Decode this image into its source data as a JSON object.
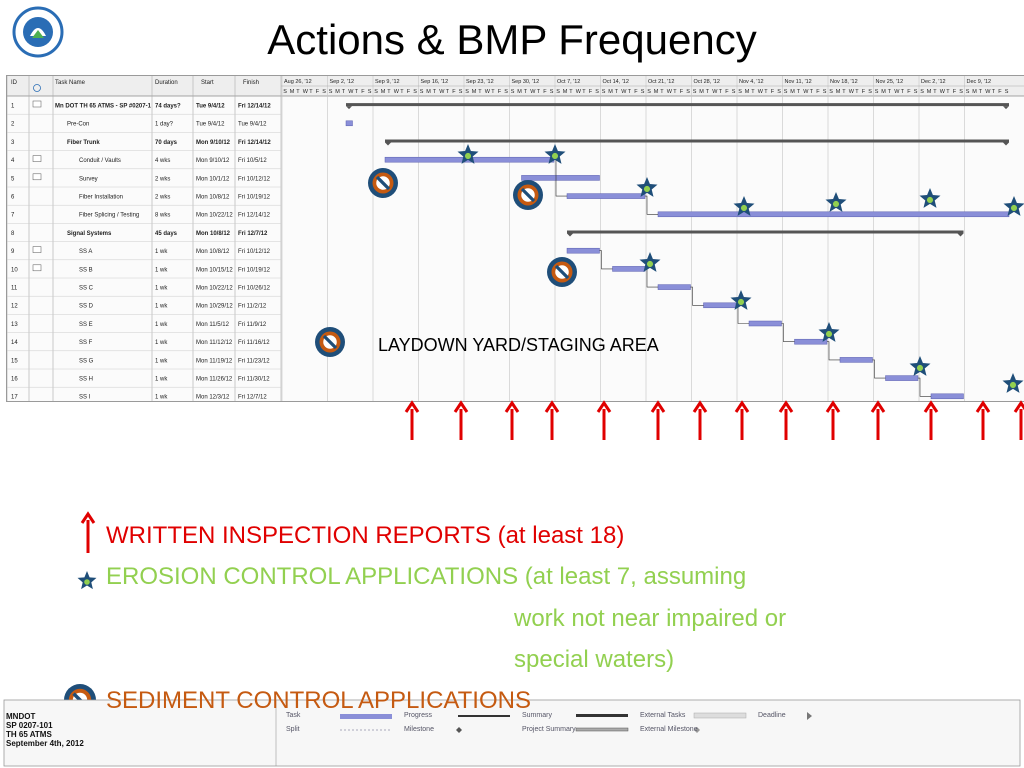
{
  "title": "Actions & BMP Frequency",
  "gantt": {
    "headers": {
      "id": "ID",
      "task_name": "Task Name",
      "duration": "Duration",
      "start": "Start",
      "finish": "Finish"
    },
    "week_labels": [
      "Aug 26, '12",
      "Sep 2, '12",
      "Sep 9, '12",
      "Sep 16, '12",
      "Sep 23, '12",
      "Sep 30, '12",
      "Oct 7, '12",
      "Oct 14, '12",
      "Oct 21, '12",
      "Oct 28, '12",
      "Nov 4, '12",
      "Nov 11, '12",
      "Nov 18, '12",
      "Nov 25, '12",
      "Dec 2, '12",
      "Dec 9, '12"
    ],
    "day_letters": [
      "S",
      "M",
      "T",
      "W",
      "T",
      "F",
      "S"
    ],
    "tasks": [
      {
        "id": "1",
        "name": "Mn DOT TH 65 ATMS - SP #0207-1",
        "duration": "74 days?",
        "start": "Tue 9/4/12",
        "finish": "Fri 12/14/12",
        "bold": true,
        "indent": 0
      },
      {
        "id": "2",
        "name": "Pre-Con",
        "duration": "1 day?",
        "start": "Tue 9/4/12",
        "finish": "Tue 9/4/12",
        "bold": false,
        "indent": 1
      },
      {
        "id": "3",
        "name": "Fiber Trunk",
        "duration": "70 days",
        "start": "Mon 9/10/12",
        "finish": "Fri 12/14/12",
        "bold": true,
        "indent": 1
      },
      {
        "id": "4",
        "name": "Conduit / Vaults",
        "duration": "4 wks",
        "start": "Mon 9/10/12",
        "finish": "Fri 10/5/12",
        "bold": false,
        "indent": 2
      },
      {
        "id": "5",
        "name": "Survey",
        "duration": "2 wks",
        "start": "Mon 10/1/12",
        "finish": "Fri 10/12/12",
        "bold": false,
        "indent": 2
      },
      {
        "id": "6",
        "name": "Fiber Installation",
        "duration": "2 wks",
        "start": "Mon 10/8/12",
        "finish": "Fri 10/19/12",
        "bold": false,
        "indent": 2
      },
      {
        "id": "7",
        "name": "Fiber Splicing / Testing",
        "duration": "8 wks",
        "start": "Mon 10/22/12",
        "finish": "Fri 12/14/12",
        "bold": false,
        "indent": 2
      },
      {
        "id": "8",
        "name": "Signal Systems",
        "duration": "45 days",
        "start": "Mon 10/8/12",
        "finish": "Fri 12/7/12",
        "bold": true,
        "indent": 1
      },
      {
        "id": "9",
        "name": "SS A",
        "duration": "1 wk",
        "start": "Mon 10/8/12",
        "finish": "Fri 10/12/12",
        "bold": false,
        "indent": 2
      },
      {
        "id": "10",
        "name": "SS B",
        "duration": "1 wk",
        "start": "Mon 10/15/12",
        "finish": "Fri 10/19/12",
        "bold": false,
        "indent": 2
      },
      {
        "id": "11",
        "name": "SS C",
        "duration": "1 wk",
        "start": "Mon 10/22/12",
        "finish": "Fri 10/26/12",
        "bold": false,
        "indent": 2
      },
      {
        "id": "12",
        "name": "SS D",
        "duration": "1 wk",
        "start": "Mon 10/29/12",
        "finish": "Fri 11/2/12",
        "bold": false,
        "indent": 2
      },
      {
        "id": "13",
        "name": "SS E",
        "duration": "1 wk",
        "start": "Mon 11/5/12",
        "finish": "Fri 11/9/12",
        "bold": false,
        "indent": 2
      },
      {
        "id": "14",
        "name": "SS F",
        "duration": "1 wk",
        "start": "Mon 11/12/12",
        "finish": "Fri 11/16/12",
        "bold": false,
        "indent": 2
      },
      {
        "id": "15",
        "name": "SS G",
        "duration": "1 wk",
        "start": "Mon 11/19/12",
        "finish": "Fri 11/23/12",
        "bold": false,
        "indent": 2
      },
      {
        "id": "16",
        "name": "SS H",
        "duration": "1 wk",
        "start": "Mon 11/26/12",
        "finish": "Fri 11/30/12",
        "bold": false,
        "indent": 2
      },
      {
        "id": "17",
        "name": "SS I",
        "duration": "1 wk",
        "start": "Mon 12/3/12",
        "finish": "Fri 12/7/12",
        "bold": false,
        "indent": 2
      }
    ]
  },
  "laydown_label": "LAYDOWN YARD/STAGING AREA",
  "legend": {
    "inspection": "WRITTEN INSPECTION REPORTS (at least 18)",
    "erosion_line1": "EROSION CONTROL APPLICATIONS (at least 7, assuming",
    "erosion_line2": "work not near impaired or",
    "erosion_line3": "special waters)",
    "sediment": "SEDIMENT CONTROL APPLICATIONS"
  },
  "footer": {
    "info_lines": [
      "MNDOT",
      "SP 0207-101",
      "TH 65 ATMS",
      "September 4th, 2012"
    ],
    "legend_labels": [
      "Task",
      "Split",
      "Progress",
      "Milestone",
      "Summary",
      "Project Summary",
      "External Tasks",
      "External Milestone",
      "Deadline"
    ]
  },
  "colors": {
    "inspection_arrow": "#e00000",
    "erosion_text": "#92d050",
    "sediment_text": "#c55a11",
    "star_fill": "#1f4e79",
    "star_center": "#92d050",
    "sediment_ring": "#1f4e79",
    "sediment_fill": "#c55a11",
    "task_bar": "#8a8fd8"
  }
}
